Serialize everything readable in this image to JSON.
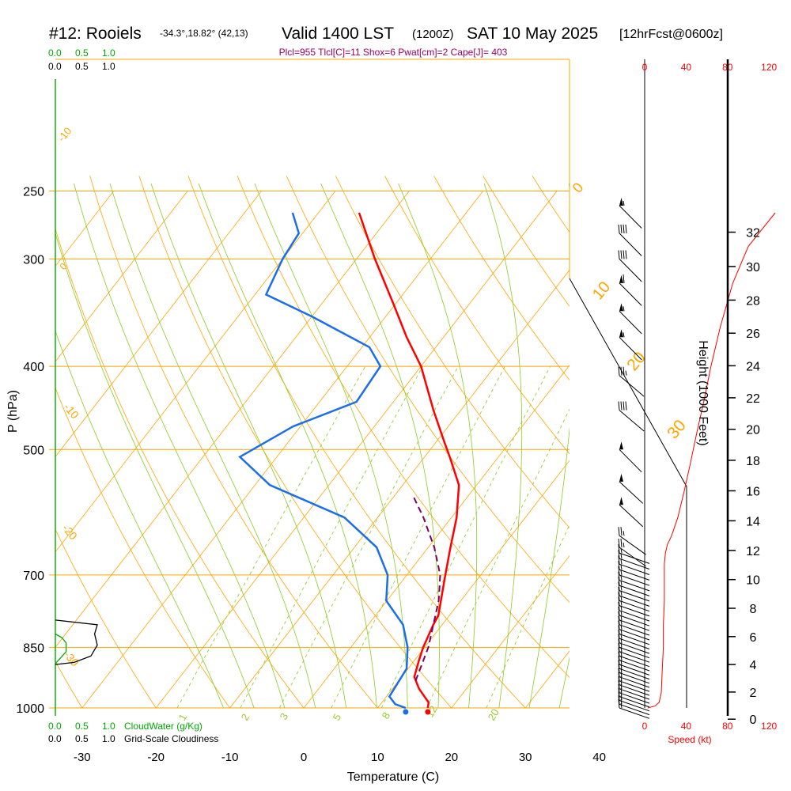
{
  "header": {
    "station": "#12: Rooiels",
    "location": "-34.3°,18.82° (42,13)",
    "valid": "Valid 1400 LST",
    "utc": "(1200Z)",
    "date": "SAT 10 May 2025",
    "forecast": "[12hrFcst@0600z]",
    "indices": "Plcl=955 Tlcl[C]=11 Shox=6 Pwat[cm]=2 Cape[J]= 403"
  },
  "colors": {
    "temperature": "#ff0000",
    "dewpoint": "#1a6fe8",
    "parcel": "#800060",
    "isobar": "#ffa500",
    "dry_adiabat": "#ffa500",
    "moist_adiabat": "#88cc22",
    "mixing_ratio": "#99cc33",
    "cloud_water": "#00aa00",
    "speed": "#ff0000",
    "indices_text": "#990066"
  },
  "labels": {
    "temperature_axis": "Temperature (C)",
    "pressure_axis": "P (hPa)",
    "height_axis": "Height (1000 Feet)",
    "speed_axis": "Speed (kt)",
    "cloudwater_axis": "CloudWater (g/Kg)",
    "cloudiness_axis": "Grid-Scale Cloudiness"
  },
  "chart_data": {
    "type": "line",
    "chart_kind": "skew-T log-P sounding",
    "pressure_ticks": [
      250,
      300,
      400,
      500,
      700,
      850,
      1000
    ],
    "temperature_ticks": [
      -30,
      -20,
      -10,
      0,
      10,
      20,
      30,
      40
    ],
    "height_ticks_kft": [
      0,
      2,
      4,
      6,
      8,
      10,
      12,
      14,
      16,
      18,
      20,
      22,
      24,
      26,
      28,
      30,
      32
    ],
    "speed_ticks_kt": [
      0,
      40,
      80,
      120
    ],
    "cloud_ticks": [
      "0.0",
      "0.5",
      "1.0"
    ],
    "isotherm_labels": [
      "-10",
      "0",
      "-10",
      "-20",
      "-30",
      "0",
      "10",
      "20",
      "30"
    ],
    "mixing_ratio_labels": [
      "1",
      "2",
      "3",
      "5",
      "8",
      "12",
      "20"
    ],
    "series": [
      {
        "name": "temperature",
        "points": [
          {
            "p": 1000,
            "t": 16.8
          },
          {
            "p": 985,
            "t": 16.3
          },
          {
            "p": 950,
            "t": 13.6
          },
          {
            "p": 920,
            "t": 11.7
          },
          {
            "p": 880,
            "t": 10.6
          },
          {
            "p": 850,
            "t": 9.8
          },
          {
            "p": 800,
            "t": 8.8
          },
          {
            "p": 780,
            "t": 8.5
          },
          {
            "p": 700,
            "t": 5.2
          },
          {
            "p": 650,
            "t": 3.0
          },
          {
            "p": 600,
            "t": 0.7
          },
          {
            "p": 550,
            "t": -2.4
          },
          {
            "p": 510,
            "t": -6.6
          },
          {
            "p": 490,
            "t": -8.9
          },
          {
            "p": 450,
            "t": -13.7
          },
          {
            "p": 400,
            "t": -20.0
          },
          {
            "p": 370,
            "t": -25.0
          },
          {
            "p": 340,
            "t": -30.0
          },
          {
            "p": 300,
            "t": -37.5
          },
          {
            "p": 265,
            "t": -44.5
          }
        ]
      },
      {
        "name": "dewpoint",
        "points": [
          {
            "p": 1000,
            "t": 13.8
          },
          {
            "p": 990,
            "t": 12.0
          },
          {
            "p": 970,
            "t": 10.4
          },
          {
            "p": 900,
            "t": 9.8
          },
          {
            "p": 850,
            "t": 7.7
          },
          {
            "p": 800,
            "t": 4.7
          },
          {
            "p": 750,
            "t": -0.1
          },
          {
            "p": 700,
            "t": -2.6
          },
          {
            "p": 650,
            "t": -7.0
          },
          {
            "p": 600,
            "t": -14.5
          },
          {
            "p": 550,
            "t": -28.0
          },
          {
            "p": 510,
            "t": -35.0
          },
          {
            "p": 470,
            "t": -31.0
          },
          {
            "p": 440,
            "t": -25.0
          },
          {
            "p": 400,
            "t": -25.5
          },
          {
            "p": 380,
            "t": -29.0
          },
          {
            "p": 350,
            "t": -40.0
          },
          {
            "p": 330,
            "t": -48.5
          },
          {
            "p": 300,
            "t": -50.0
          },
          {
            "p": 280,
            "t": -50.5
          },
          {
            "p": 265,
            "t": -53.5
          }
        ]
      },
      {
        "name": "parcel",
        "points": [
          {
            "p": 930,
            "t": 12.3
          },
          {
            "p": 850,
            "t": 10.5
          },
          {
            "p": 750,
            "t": 7.0
          },
          {
            "p": 700,
            "t": 4.5
          },
          {
            "p": 650,
            "t": 0.8
          },
          {
            "p": 600,
            "t": -3.8
          },
          {
            "p": 565,
            "t": -7.6
          }
        ]
      }
    ],
    "winds": [
      {
        "p": 1000,
        "dir": 180,
        "spd": 15
      },
      {
        "p": 990,
        "dir": 180,
        "spd": 15
      },
      {
        "p": 980,
        "dir": 180,
        "spd": 15
      },
      {
        "p": 970,
        "dir": 180,
        "spd": 15
      },
      {
        "p": 960,
        "dir": 180,
        "spd": 15
      },
      {
        "p": 950,
        "dir": 180,
        "spd": 15
      },
      {
        "p": 940,
        "dir": 180,
        "spd": 15
      },
      {
        "p": 930,
        "dir": 180,
        "spd": 15
      },
      {
        "p": 920,
        "dir": 180,
        "spd": 15
      },
      {
        "p": 910,
        "dir": 180,
        "spd": 15
      },
      {
        "p": 900,
        "dir": 180,
        "spd": 15
      },
      {
        "p": 890,
        "dir": 180,
        "spd": 15
      },
      {
        "p": 880,
        "dir": 180,
        "spd": 15
      },
      {
        "p": 870,
        "dir": 180,
        "spd": 15
      },
      {
        "p": 860,
        "dir": 180,
        "spd": 15
      },
      {
        "p": 850,
        "dir": 180,
        "spd": 15
      },
      {
        "p": 840,
        "dir": 180,
        "spd": 15
      },
      {
        "p": 830,
        "dir": 180,
        "spd": 15
      },
      {
        "p": 820,
        "dir": 180,
        "spd": 15
      },
      {
        "p": 810,
        "dir": 180,
        "spd": 15
      },
      {
        "p": 800,
        "dir": 180,
        "spd": 15
      },
      {
        "p": 790,
        "dir": 180,
        "spd": 15
      },
      {
        "p": 780,
        "dir": 180,
        "spd": 15
      },
      {
        "p": 770,
        "dir": 180,
        "spd": 15
      },
      {
        "p": 760,
        "dir": 180,
        "spd": 15
      },
      {
        "p": 750,
        "dir": 180,
        "spd": 15
      },
      {
        "p": 740,
        "dir": 180,
        "spd": 15
      },
      {
        "p": 730,
        "dir": 180,
        "spd": 15
      },
      {
        "p": 720,
        "dir": 180,
        "spd": 15
      },
      {
        "p": 710,
        "dir": 180,
        "spd": 15
      },
      {
        "p": 700,
        "dir": 180,
        "spd": 15
      },
      {
        "p": 690,
        "dir": 180,
        "spd": 15
      },
      {
        "p": 680,
        "dir": 180,
        "spd": 15
      },
      {
        "p": 670,
        "dir": 180,
        "spd": 15
      },
      {
        "p": 660,
        "dir": 180,
        "spd": 15
      },
      {
        "p": 650,
        "dir": 260,
        "spd": 25
      },
      {
        "p": 630,
        "dir": 260,
        "spd": 25
      },
      {
        "p": 580,
        "dir": 290,
        "spd": 50
      },
      {
        "p": 545,
        "dir": 290,
        "spd": 50
      },
      {
        "p": 500,
        "dir": 300,
        "spd": 50
      },
      {
        "p": 450,
        "dir": 280,
        "spd": 40
      },
      {
        "p": 410,
        "dir": 280,
        "spd": 35
      },
      {
        "p": 370,
        "dir": 300,
        "spd": 55
      },
      {
        "p": 345,
        "dir": 300,
        "spd": 55
      },
      {
        "p": 320,
        "dir": 300,
        "spd": 60
      },
      {
        "p": 300,
        "dir": 300,
        "spd": 40
      },
      {
        "p": 280,
        "dir": 300,
        "spd": 40
      },
      {
        "p": 260,
        "dir": 300,
        "spd": 55
      }
    ],
    "speed_profile": [
      {
        "p": 1000,
        "spd": 3
      },
      {
        "p": 995,
        "spd": 10
      },
      {
        "p": 985,
        "spd": 14
      },
      {
        "p": 960,
        "spd": 16
      },
      {
        "p": 900,
        "spd": 17
      },
      {
        "p": 850,
        "spd": 18
      },
      {
        "p": 800,
        "spd": 18
      },
      {
        "p": 750,
        "spd": 19
      },
      {
        "p": 700,
        "spd": 19
      },
      {
        "p": 680,
        "spd": 19
      },
      {
        "p": 660,
        "spd": 20
      },
      {
        "p": 645,
        "spd": 22
      },
      {
        "p": 630,
        "spd": 26
      },
      {
        "p": 600,
        "spd": 32
      },
      {
        "p": 560,
        "spd": 38
      },
      {
        "p": 520,
        "spd": 44
      },
      {
        "p": 480,
        "spd": 50
      },
      {
        "p": 440,
        "spd": 57
      },
      {
        "p": 400,
        "spd": 64
      },
      {
        "p": 360,
        "spd": 73
      },
      {
        "p": 320,
        "spd": 85
      },
      {
        "p": 290,
        "spd": 100
      },
      {
        "p": 265,
        "spd": 126
      }
    ],
    "cloudiness": [
      {
        "p": 790,
        "v": 0.0
      },
      {
        "p": 800,
        "v": 0.78
      },
      {
        "p": 820,
        "v": 0.73
      },
      {
        "p": 845,
        "v": 0.78
      },
      {
        "p": 870,
        "v": 0.66
      },
      {
        "p": 885,
        "v": 0.35
      },
      {
        "p": 890,
        "v": 0.0
      }
    ],
    "cloud_water": [
      {
        "p": 820,
        "v": 0.0
      },
      {
        "p": 828,
        "v": 0.12
      },
      {
        "p": 840,
        "v": 0.2
      },
      {
        "p": 860,
        "v": 0.2
      },
      {
        "p": 878,
        "v": 0.07
      },
      {
        "p": 888,
        "v": 0.0
      }
    ]
  }
}
